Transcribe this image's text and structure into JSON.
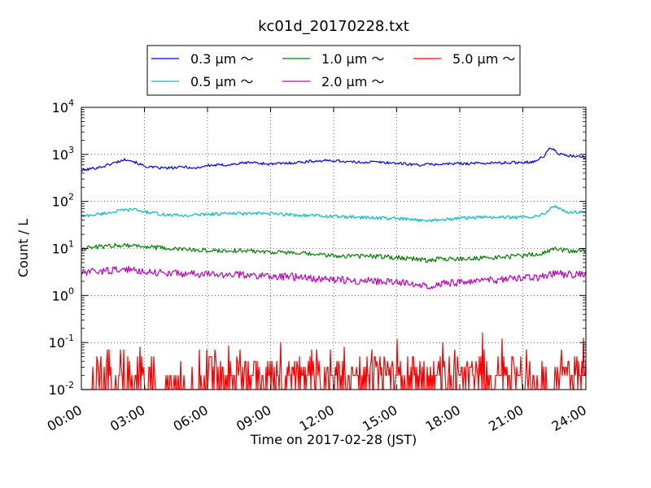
{
  "chart_data": {
    "type": "line",
    "title": "kc01d_20170228.txt",
    "xlabel": "Time on 2017-02-28 (JST)",
    "ylabel": "Count / L",
    "yscale": "log",
    "xlim": [
      "00:00",
      "24:00"
    ],
    "ylim": [
      0.01,
      10000
    ],
    "grid": true,
    "legend_position": "top",
    "x_ticks": [
      "00:00",
      "03:00",
      "06:00",
      "09:00",
      "12:00",
      "15:00",
      "18:00",
      "21:00",
      "24:00"
    ],
    "y_ticks": [
      {
        "value": 0.01,
        "base": "10",
        "exp": "-2"
      },
      {
        "value": 0.1,
        "base": "10",
        "exp": "-1"
      },
      {
        "value": 1,
        "base": "10",
        "exp": "0"
      },
      {
        "value": 10,
        "base": "10",
        "exp": "1"
      },
      {
        "value": 100,
        "base": "10",
        "exp": "2"
      },
      {
        "value": 1000,
        "base": "10",
        "exp": "3"
      },
      {
        "value": 10000,
        "base": "10",
        "exp": "4"
      }
    ],
    "x_units": "hours",
    "series": [
      {
        "name": "0.3 μm ～",
        "color": "#0000ff",
        "x": [
          0,
          0.5,
          1,
          1.5,
          2,
          2.2,
          2.5,
          3,
          3.5,
          4,
          4.5,
          5,
          5.3,
          6,
          7,
          8,
          9,
          10,
          11,
          12,
          13,
          14,
          15,
          16,
          17,
          18,
          19,
          20,
          21,
          21.5,
          22,
          22.3,
          22.7,
          23,
          23.5,
          24
        ],
        "y": [
          450,
          500,
          550,
          650,
          760,
          800,
          700,
          560,
          520,
          510,
          520,
          550,
          500,
          580,
          600,
          680,
          620,
          660,
          720,
          740,
          680,
          690,
          650,
          600,
          620,
          640,
          650,
          660,
          680,
          700,
          900,
          1400,
          1050,
          950,
          900,
          870
        ],
        "noise": 0.03
      },
      {
        "name": "0.5 μm ～",
        "color": "#00bfbf",
        "x": [
          0,
          1,
          2,
          2.5,
          3,
          4,
          5,
          6,
          7,
          8,
          9,
          10,
          11,
          12,
          13,
          14,
          15,
          16,
          17,
          18,
          19,
          20,
          21,
          21.5,
          22,
          22.5,
          23,
          24
        ],
        "y": [
          48,
          55,
          65,
          68,
          60,
          52,
          50,
          54,
          55,
          55,
          55,
          52,
          50,
          48,
          46,
          45,
          43,
          40,
          40,
          44,
          46,
          46,
          46,
          48,
          55,
          80,
          60,
          58
        ],
        "noise": 0.035
      },
      {
        "name": "1.0 μm ～",
        "color": "#008000",
        "x": [
          0,
          1,
          2,
          3,
          4,
          5,
          6,
          7,
          8,
          9,
          10,
          11,
          12,
          13,
          14,
          15,
          16,
          16.5,
          17,
          18,
          19,
          20,
          21,
          22,
          22.5,
          23,
          24
        ],
        "y": [
          10,
          11,
          12,
          11,
          10,
          9.5,
          9,
          9,
          9,
          8.5,
          8,
          7.5,
          7,
          7,
          6.8,
          6.5,
          6,
          5.5,
          6,
          6,
          6.2,
          6.5,
          7,
          8,
          10,
          9,
          9
        ],
        "noise": 0.05
      },
      {
        "name": "2.0 μm ～",
        "color": "#bf00bf",
        "x": [
          0,
          1,
          2,
          3,
          4,
          5,
          6,
          7,
          8,
          9,
          10,
          11,
          12,
          13,
          14,
          15,
          16,
          16.5,
          17,
          18,
          19,
          20,
          21,
          22,
          22.5,
          23,
          24
        ],
        "y": [
          3,
          3.3,
          3.6,
          3.3,
          3,
          2.9,
          2.8,
          2.8,
          2.7,
          2.6,
          2.5,
          2.3,
          2.2,
          2.1,
          2,
          1.9,
          1.8,
          1.6,
          1.8,
          1.9,
          2,
          2.2,
          2.3,
          2.5,
          3,
          2.8,
          2.8
        ],
        "noise": 0.08
      },
      {
        "name": "5.0 μm ～",
        "color": "#ff0000",
        "base": 0.01,
        "levels": [
          0.02,
          0.03,
          0.04,
          0.05,
          0.07
        ],
        "spikes": [
          {
            "x": 2.8,
            "y": 0.08
          },
          {
            "x": 7.0,
            "y": 0.085
          },
          {
            "x": 9.5,
            "y": 0.1
          },
          {
            "x": 12.5,
            "y": 0.08
          },
          {
            "x": 15.0,
            "y": 0.115
          },
          {
            "x": 17.2,
            "y": 0.1
          },
          {
            "x": 19.1,
            "y": 0.16
          },
          {
            "x": 20.0,
            "y": 0.12
          },
          {
            "x": 23.9,
            "y": 0.125
          }
        ],
        "quiet_intervals": [
          [
            3.0,
            6.0
          ],
          [
            21.0,
            22.5
          ]
        ]
      }
    ]
  }
}
